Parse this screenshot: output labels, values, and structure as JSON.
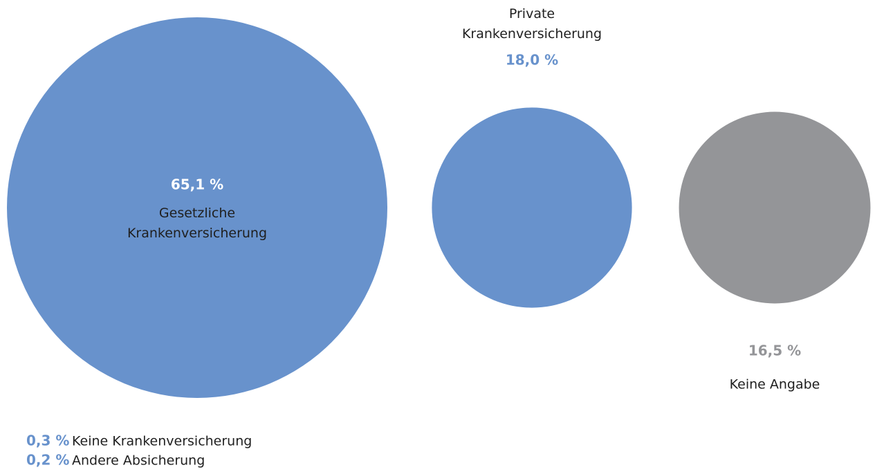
{
  "chart_data": {
    "type": "bubble",
    "categories": [
      "Gesetzliche Krankenversicherung",
      "Private Krankenversicherung",
      "Keine Angabe",
      "Keine Krankenversicherung",
      "Andere Absicherung"
    ],
    "values": [
      65.1,
      18.0,
      16.5,
      0.3,
      0.2
    ],
    "value_labels": [
      "65,1 %",
      "18,0 %",
      "16,5 %",
      "0,3 %",
      "0,2 %"
    ],
    "colors": [
      "#6892cc",
      "#6892cc",
      "#949598",
      "#6892cc",
      "#6892cc"
    ]
  }
}
